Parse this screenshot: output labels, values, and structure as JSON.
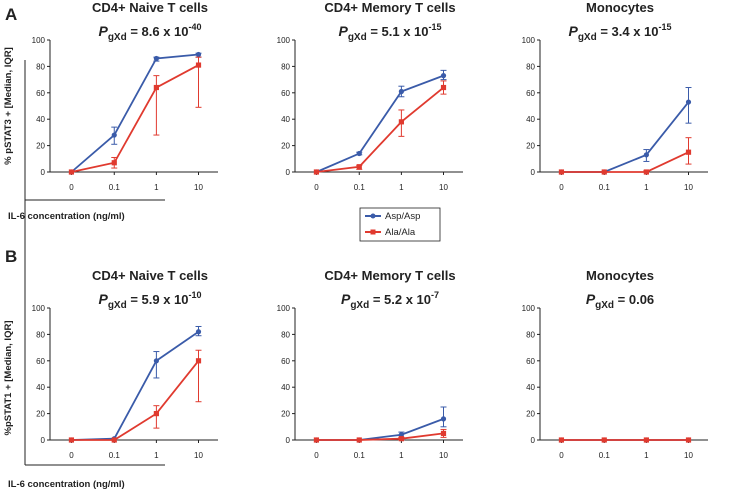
{
  "colors": {
    "asp": "#3A5BA9",
    "ala": "#E03A2F",
    "axis": "#222222"
  },
  "legend": {
    "asp_label": "Asp/Asp",
    "ala_label": "Ala/Ala"
  },
  "row_letters": [
    "A",
    "B"
  ],
  "ylabels": [
    "% pSTAT3 + [Median, IQR]",
    "%pSTAT1 + [Median, IQR]"
  ],
  "xlabel": "IL-6 concentration (ng/ml)",
  "chart_data": [
    {
      "type": "line",
      "row": 0,
      "col": 0,
      "title": "CD4+ Naive T cells",
      "p_prefix": "P",
      "p_sub": "gXd",
      "p_text": " = 8.6 x 10",
      "p_exp": "-40",
      "categories": [
        "0",
        "0.1",
        "1",
        "10"
      ],
      "ylim": [
        0,
        100
      ],
      "yticks": [
        0,
        20,
        40,
        60,
        80,
        100
      ],
      "series": [
        {
          "name": "Asp/Asp",
          "values": [
            0,
            28,
            86,
            89
          ],
          "low": [
            0,
            21,
            84,
            87
          ],
          "high": [
            0,
            34,
            87,
            90
          ]
        },
        {
          "name": "Ala/Ala",
          "values": [
            0,
            7,
            64,
            81
          ],
          "low": [
            0,
            3,
            28,
            49
          ],
          "high": [
            0,
            11,
            73,
            87
          ]
        }
      ]
    },
    {
      "type": "line",
      "row": 0,
      "col": 1,
      "title": "CD4+ Memory T cells",
      "p_prefix": "P",
      "p_sub": "gXd",
      "p_text": " = 5.1 x 10",
      "p_exp": "-15",
      "categories": [
        "0",
        "0.1",
        "1",
        "10"
      ],
      "ylim": [
        0,
        100
      ],
      "yticks": [
        0,
        20,
        40,
        60,
        80,
        100
      ],
      "series": [
        {
          "name": "Asp/Asp",
          "values": [
            0,
            14,
            61,
            73
          ],
          "low": [
            0,
            13,
            57,
            70
          ],
          "high": [
            0,
            15,
            65,
            77
          ]
        },
        {
          "name": "Ala/Ala",
          "values": [
            0,
            4,
            38,
            64
          ],
          "low": [
            0,
            2,
            27,
            59
          ],
          "high": [
            0,
            5,
            47,
            69
          ]
        }
      ]
    },
    {
      "type": "line",
      "row": 0,
      "col": 2,
      "title": "Monocytes",
      "p_prefix": "P",
      "p_sub": "gXd",
      "p_text": " = 3.4 x 10",
      "p_exp": "-15",
      "categories": [
        "0",
        "0.1",
        "1",
        "10"
      ],
      "ylim": [
        0,
        100
      ],
      "yticks": [
        0,
        20,
        40,
        60,
        80,
        100
      ],
      "series": [
        {
          "name": "Asp/Asp",
          "values": [
            0,
            0,
            13,
            53
          ],
          "low": [
            0,
            0,
            8,
            37
          ],
          "high": [
            0,
            0,
            17,
            64
          ]
        },
        {
          "name": "Ala/Ala",
          "values": [
            0,
            0,
            0,
            15
          ],
          "low": [
            0,
            0,
            0,
            6
          ],
          "high": [
            0,
            0,
            1,
            26
          ]
        }
      ]
    },
    {
      "type": "line",
      "row": 1,
      "col": 0,
      "title": "CD4+ Naive T cells",
      "p_prefix": "P",
      "p_sub": "gXd",
      "p_text": " = 5.9 x 10",
      "p_exp": "-10",
      "categories": [
        "0",
        "0.1",
        "1",
        "10"
      ],
      "ylim": [
        0,
        100
      ],
      "yticks": [
        0,
        20,
        40,
        60,
        80,
        100
      ],
      "series": [
        {
          "name": "Asp/Asp",
          "values": [
            0,
            1,
            60,
            82
          ],
          "low": [
            0,
            0,
            47,
            79
          ],
          "high": [
            0,
            1,
            67,
            86
          ]
        },
        {
          "name": "Ala/Ala",
          "values": [
            0,
            0,
            20,
            60
          ],
          "low": [
            0,
            0,
            9,
            29
          ],
          "high": [
            0,
            0,
            26,
            68
          ]
        }
      ]
    },
    {
      "type": "line",
      "row": 1,
      "col": 1,
      "title": "CD4+ Memory T cells",
      "p_prefix": "P",
      "p_sub": "gXd",
      "p_text": " = 5.2 x 10",
      "p_exp": "-7",
      "categories": [
        "0",
        "0.1",
        "1",
        "10"
      ],
      "ylim": [
        0,
        100
      ],
      "yticks": [
        0,
        20,
        40,
        60,
        80,
        100
      ],
      "series": [
        {
          "name": "Asp/Asp",
          "values": [
            0,
            0,
            4,
            16
          ],
          "low": [
            0,
            0,
            2,
            10
          ],
          "high": [
            0,
            0,
            6,
            25
          ]
        },
        {
          "name": "Ala/Ala",
          "values": [
            0,
            0,
            1,
            5
          ],
          "low": [
            0,
            0,
            0,
            2
          ],
          "high": [
            0,
            0,
            2,
            8
          ]
        }
      ]
    },
    {
      "type": "line",
      "row": 1,
      "col": 2,
      "title": "Monocytes",
      "p_prefix": "P",
      "p_sub": "gXd",
      "p_text": " = 0.06",
      "p_exp": "",
      "categories": [
        "0",
        "0.1",
        "1",
        "10"
      ],
      "ylim": [
        0,
        100
      ],
      "yticks": [
        0,
        20,
        40,
        60,
        80,
        100
      ],
      "series": [
        {
          "name": "Asp/Asp",
          "values": [
            0,
            0,
            0,
            0
          ],
          "low": [
            0,
            0,
            0,
            0
          ],
          "high": [
            0,
            0,
            0,
            0
          ]
        },
        {
          "name": "Ala/Ala",
          "values": [
            0,
            0,
            0,
            0
          ],
          "low": [
            0,
            0,
            0,
            0
          ],
          "high": [
            0,
            0,
            0,
            0
          ]
        }
      ]
    }
  ]
}
